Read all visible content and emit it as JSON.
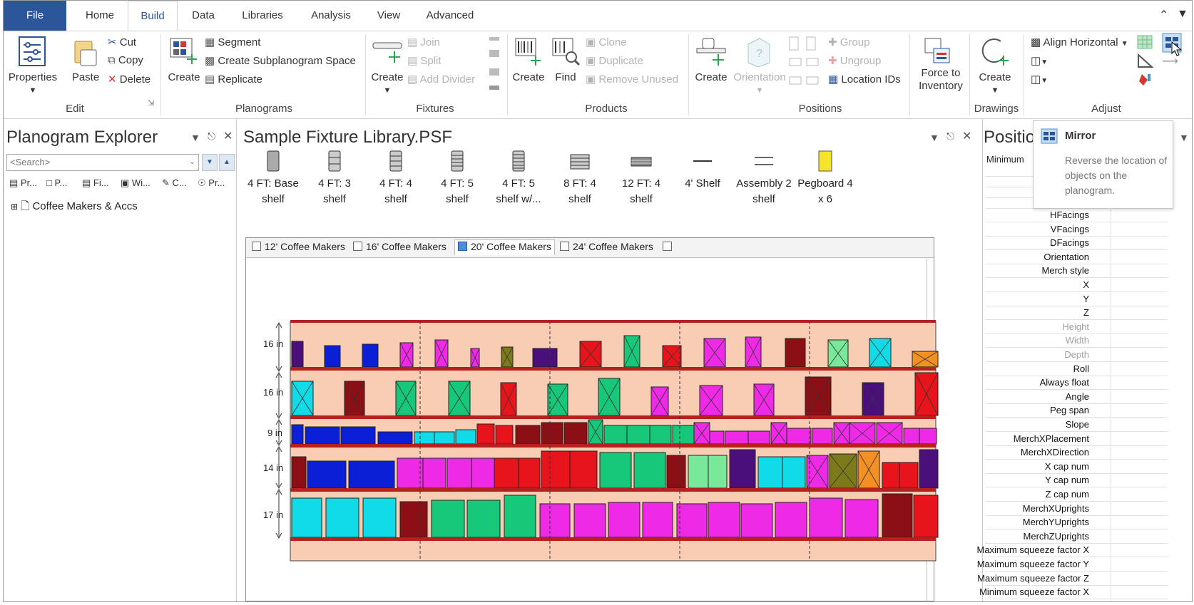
{
  "menu_tabs": [
    "File",
    "Home",
    "Build",
    "Data",
    "Libraries",
    "Analysis",
    "View",
    "Advanced"
  ],
  "active_tab": "Build",
  "ribbon": {
    "edit": {
      "properties": "Properties",
      "paste": "Paste",
      "cut": "Cut",
      "copy": "Copy",
      "delete": "Delete",
      "label": "Edit"
    },
    "planograms": {
      "create": "Create",
      "segment": "Segment",
      "create_subplanogram": "Create Subplanogram Space",
      "replicate": "Replicate",
      "label": "Planograms"
    },
    "fixtures": {
      "create": "Create",
      "join": "Join",
      "split": "Split",
      "add_divider": "Add Divider",
      "label": "Fixtures"
    },
    "products": {
      "create": "Create",
      "find": "Find",
      "clone": "Clone",
      "duplicate": "Duplicate",
      "remove_unused": "Remove Unused",
      "label": "Products"
    },
    "positions": {
      "create": "Create",
      "orientation": "Orientation",
      "group": "Group",
      "ungroup": "Ungroup",
      "location_ids": "Location IDs",
      "label": "Positions"
    },
    "inventory": {
      "force_to_inventory": "Force to Inventory"
    },
    "drawings": {
      "create": "Create",
      "label": "Drawings"
    },
    "adjust": {
      "align_horizontal": "Align Horizontal",
      "label": "Adjust"
    }
  },
  "explorer": {
    "title": "Planogram Explorer",
    "search_placeholder": "<Search>",
    "subtabs": [
      "Pr...",
      "P...",
      "Fi...",
      "Wi...",
      "C...",
      "Pr..."
    ],
    "tree_item": "Coffee Makers & Accs"
  },
  "library": {
    "title": "Sample Fixture Library.PSF",
    "items": [
      {
        "line1": "4 FT: Base",
        "line2": "shelf"
      },
      {
        "line1": "4 FT: 3",
        "line2": "shelf"
      },
      {
        "line1": "4 FT: 4",
        "line2": "shelf"
      },
      {
        "line1": "4 FT: 5",
        "line2": "shelf"
      },
      {
        "line1": "4 FT: 5",
        "line2": "shelf w/..."
      },
      {
        "line1": "8 FT: 4",
        "line2": "shelf"
      },
      {
        "line1": "12 FT: 4",
        "line2": "shelf"
      },
      {
        "line1": "4' Shelf",
        "line2": ""
      },
      {
        "line1": "Assembly 2",
        "line2": "shelf"
      },
      {
        "line1": "Pegboard 4",
        "line2": "x 6"
      }
    ]
  },
  "doc_tabs": [
    "12' Coffee Makers",
    "16' Coffee Makers",
    "20' Coffee Makers",
    "24' Coffee Makers"
  ],
  "active_doc_tab": "20' Coffee Makers",
  "shelf_labels": [
    "16 in",
    "16 in",
    "9 in",
    "14 in",
    "17 in"
  ],
  "properties": {
    "title": "Positio",
    "col_header": "Minimum",
    "rows": [
      {
        "name": "HFacings",
        "grey": false
      },
      {
        "name": "VFacings",
        "grey": false
      },
      {
        "name": "DFacings",
        "grey": false
      },
      {
        "name": "Orientation",
        "grey": false
      },
      {
        "name": "Merch style",
        "grey": false
      },
      {
        "name": "X",
        "grey": false
      },
      {
        "name": "Y",
        "grey": false
      },
      {
        "name": "Z",
        "grey": false
      },
      {
        "name": "Height",
        "grey": true
      },
      {
        "name": "Width",
        "grey": true
      },
      {
        "name": "Depth",
        "grey": true
      },
      {
        "name": "Roll",
        "grey": false
      },
      {
        "name": "Always float",
        "grey": false
      },
      {
        "name": "Angle",
        "grey": false
      },
      {
        "name": "Peg span",
        "grey": false
      },
      {
        "name": "Slope",
        "grey": false
      },
      {
        "name": "MerchXPlacement",
        "grey": false
      },
      {
        "name": "MerchXDirection",
        "grey": false
      },
      {
        "name": "X cap num",
        "grey": false
      },
      {
        "name": "Y cap num",
        "grey": false
      },
      {
        "name": "Z cap num",
        "grey": false
      },
      {
        "name": "MerchXUprights",
        "grey": false
      },
      {
        "name": "MerchYUprights",
        "grey": false
      },
      {
        "name": "MerchZUprights",
        "grey": false
      },
      {
        "name": "Maximum squeeze factor X",
        "grey": false
      },
      {
        "name": "Maximum squeeze factor Y",
        "grey": false
      },
      {
        "name": "Maximum squeeze factor Z",
        "grey": false
      },
      {
        "name": "Minimum squeeze factor X",
        "grey": false
      }
    ]
  },
  "tooltip": {
    "title": "Mirror",
    "body": "Reverse the location of objects on the planogram."
  },
  "colors": {
    "accent": "#2b579a",
    "shelf": "#b5221e",
    "background": "#f8cdb3"
  }
}
